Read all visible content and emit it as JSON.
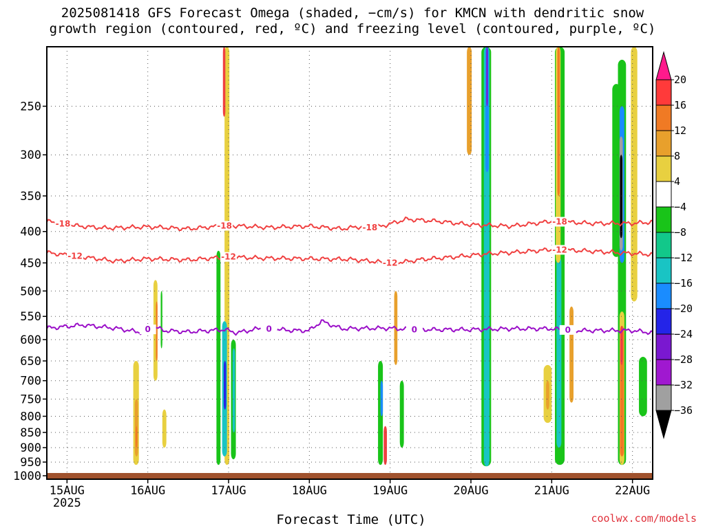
{
  "main": {
    "title_line1": "2025081418 GFS Forecast Omega (shaded, −cm/s) for KMCN with dendritic snow",
    "title_line2": "growth region (contoured, red, ºC) and freezing level (contoured, purple, ºC)",
    "credit": "coolwx.com/models"
  },
  "chart_data": {
    "type": "heatmap",
    "title": "2025081418 GFS Forecast Omega (shaded, −cm/s) for KMCN with dendritic snow growth region (contoured, red, ºC) and freezing level (contoured, purple, ºC)",
    "xlabel": "Forecast Time (UTC)",
    "ylabel": "",
    "y_scale": "log-pressure (inverted)",
    "y_ticks": [
      250,
      300,
      350,
      400,
      450,
      500,
      550,
      600,
      650,
      700,
      750,
      800,
      850,
      900,
      950,
      1000
    ],
    "y_range": [
      200,
      1013
    ],
    "x_ticks": [
      {
        "label": "15AUG",
        "sublabel": "2025",
        "day": 0
      },
      {
        "label": "16AUG",
        "sublabel": "",
        "day": 1
      },
      {
        "label": "17AUG",
        "sublabel": "",
        "day": 2
      },
      {
        "label": "18AUG",
        "sublabel": "",
        "day": 3
      },
      {
        "label": "19AUG",
        "sublabel": "",
        "day": 4
      },
      {
        "label": "20AUG",
        "sublabel": "",
        "day": 5
      },
      {
        "label": "21AUG",
        "sublabel": "",
        "day": 6
      },
      {
        "label": "22AUG",
        "sublabel": "",
        "day": 7
      }
    ],
    "x_range_days": [
      -0.25,
      7.25
    ],
    "grid": true,
    "colorbar": {
      "labels": [
        "20",
        "16",
        "12",
        "8",
        "4",
        "−4",
        "−8",
        "−12",
        "−16",
        "−20",
        "−24",
        "−28",
        "−32",
        "−36"
      ],
      "colors_top_to_bottom": [
        "#ff1a8c",
        "#ff3a3a",
        "#f07a24",
        "#e8a02c",
        "#e8d040",
        "#ffffff",
        "#19c419",
        "#12c88a",
        "#19c4c4",
        "#1a8cff",
        "#2424e8",
        "#7a18d0",
        "#a018d0",
        "#a0a0a0",
        "#000000"
      ]
    },
    "ground_color": "#a0522d",
    "contours": [
      {
        "name": "-18",
        "color": "#f04040",
        "label": "-18",
        "x": [
          -0.25,
          0.15,
          0.5,
          1.0,
          1.5,
          2.0,
          2.5,
          3.0,
          3.4,
          3.6,
          3.75,
          3.9,
          4.2,
          4.6,
          5.0,
          5.5,
          6.0,
          6.5,
          7.0,
          7.25
        ],
        "p": [
          385,
          392,
          395,
          393,
          396,
          391,
          394,
          392,
          396,
          393,
          394,
          392,
          382,
          385,
          390,
          392,
          385,
          388,
          388,
          386
        ],
        "label_x": [
          -0.05,
          1.95,
          3.75,
          6.1
        ]
      },
      {
        "name": "-12",
        "color": "#f04040",
        "label": "-12",
        "x": [
          -0.25,
          0.2,
          0.6,
          1.0,
          1.5,
          2.0,
          2.4,
          3.0,
          3.5,
          4.0,
          4.2,
          4.4,
          4.8,
          5.2,
          5.6,
          6.0,
          6.4,
          6.8,
          7.25
        ],
        "p": [
          433,
          440,
          447,
          443,
          445,
          440,
          442,
          443,
          444,
          450,
          448,
          444,
          440,
          435,
          432,
          428,
          430,
          433,
          436
        ],
        "label_x": [
          0.1,
          2.0,
          4.0,
          6.1
        ]
      },
      {
        "name": "0",
        "color": "#9a0ec8",
        "label": "0",
        "x": [
          -0.25,
          0.2,
          0.6,
          0.95,
          1.05,
          1.2,
          1.5,
          1.95,
          2.1,
          2.4,
          2.8,
          3.0,
          3.15,
          3.4,
          3.8,
          4.0,
          4.3,
          4.6,
          5.0,
          5.5,
          6.0,
          6.3,
          6.7,
          7.0,
          7.25
        ],
        "p": [
          575,
          568,
          575,
          585,
          570,
          580,
          583,
          578,
          585,
          575,
          580,
          580,
          560,
          576,
          575,
          575,
          578,
          578,
          578,
          576,
          576,
          580,
          580,
          580,
          585
        ],
        "label_x": [
          1.0,
          2.5,
          4.3,
          6.2
        ]
      }
    ],
    "omega_bands": [
      {
        "x": 0.82,
        "w": 0.07,
        "p_top": 650,
        "p_bot": 960,
        "color": "#e8d040"
      },
      {
        "x": 0.84,
        "w": 0.04,
        "p_top": 750,
        "p_bot": 930,
        "color": "#e8a02c"
      },
      {
        "x": 0.85,
        "w": 0.02,
        "p_top": 830,
        "p_bot": 900,
        "color": "#f07a24"
      },
      {
        "x": 1.07,
        "w": 0.05,
        "p_top": 480,
        "p_bot": 700,
        "color": "#e8d040"
      },
      {
        "x": 1.1,
        "w": 0.02,
        "p_top": 520,
        "p_bot": 650,
        "color": "#f07a24"
      },
      {
        "x": 1.16,
        "w": 0.02,
        "p_top": 500,
        "p_bot": 620,
        "color": "#19c419"
      },
      {
        "x": 1.18,
        "w": 0.05,
        "p_top": 780,
        "p_bot": 900,
        "color": "#e8d040"
      },
      {
        "x": 1.95,
        "w": 0.06,
        "p_top": 90,
        "p_bot": 960,
        "color": "#e8d040"
      },
      {
        "x": 1.93,
        "w": 0.03,
        "p_top": 130,
        "p_bot": 260,
        "color": "#f04040"
      },
      {
        "x": 1.85,
        "w": 0.05,
        "p_top": 430,
        "p_bot": 960,
        "color": "#19c419"
      },
      {
        "x": 1.92,
        "w": 0.06,
        "p_top": 560,
        "p_bot": 930,
        "color": "#19c4c4"
      },
      {
        "x": 1.94,
        "w": 0.03,
        "p_top": 650,
        "p_bot": 780,
        "color": "#2424e8"
      },
      {
        "x": 2.03,
        "w": 0.06,
        "p_top": 600,
        "p_bot": 940,
        "color": "#19c419"
      },
      {
        "x": 2.05,
        "w": 0.03,
        "p_top": 620,
        "p_bot": 850,
        "color": "#19c4c4"
      },
      {
        "x": 3.85,
        "w": 0.06,
        "p_top": 650,
        "p_bot": 960,
        "color": "#19c419"
      },
      {
        "x": 3.88,
        "w": 0.03,
        "p_top": 700,
        "p_bot": 800,
        "color": "#1a8cff"
      },
      {
        "x": 3.92,
        "w": 0.04,
        "p_top": 830,
        "p_bot": 960,
        "color": "#f04040"
      },
      {
        "x": 4.05,
        "w": 0.04,
        "p_top": 500,
        "p_bot": 660,
        "color": "#e8a02c"
      },
      {
        "x": 4.12,
        "w": 0.05,
        "p_top": 700,
        "p_bot": 900,
        "color": "#19c419"
      },
      {
        "x": 4.95,
        "w": 0.06,
        "p_top": 120,
        "p_bot": 300,
        "color": "#e8a02c"
      },
      {
        "x": 5.13,
        "w": 0.12,
        "p_top": 70,
        "p_bot": 965,
        "color": "#19c419"
      },
      {
        "x": 5.16,
        "w": 0.07,
        "p_top": 70,
        "p_bot": 965,
        "color": "#19c4c4"
      },
      {
        "x": 5.18,
        "w": 0.04,
        "p_top": 70,
        "p_bot": 320,
        "color": "#1a8cff"
      },
      {
        "x": 5.19,
        "w": 0.02,
        "p_top": 80,
        "p_bot": 250,
        "color": "#7a18d0"
      },
      {
        "x": 5.9,
        "w": 0.1,
        "p_top": 660,
        "p_bot": 820,
        "color": "#e8d040"
      },
      {
        "x": 5.93,
        "w": 0.04,
        "p_top": 700,
        "p_bot": 780,
        "color": "#e8a02c"
      },
      {
        "x": 6.04,
        "w": 0.12,
        "p_top": 200,
        "p_bot": 960,
        "color": "#19c419"
      },
      {
        "x": 6.06,
        "w": 0.06,
        "p_top": 440,
        "p_bot": 900,
        "color": "#19c4c4"
      },
      {
        "x": 6.05,
        "w": 0.06,
        "p_top": 120,
        "p_bot": 450,
        "color": "#e8d040"
      },
      {
        "x": 6.07,
        "w": 0.03,
        "p_top": 180,
        "p_bot": 350,
        "color": "#f07a24"
      },
      {
        "x": 6.22,
        "w": 0.05,
        "p_top": 530,
        "p_bot": 760,
        "color": "#e8a02c"
      },
      {
        "x": 6.75,
        "w": 0.1,
        "p_top": 230,
        "p_bot": 440,
        "color": "#19c419"
      },
      {
        "x": 6.82,
        "w": 0.1,
        "p_top": 210,
        "p_bot": 960,
        "color": "#19c419"
      },
      {
        "x": 6.84,
        "w": 0.06,
        "p_top": 250,
        "p_bot": 450,
        "color": "#1a8cff"
      },
      {
        "x": 6.84,
        "w": 0.04,
        "p_top": 280,
        "p_bot": 430,
        "color": "#a0a0a0"
      },
      {
        "x": 6.845,
        "w": 0.03,
        "p_top": 300,
        "p_bot": 410,
        "color": "#000000"
      },
      {
        "x": 6.84,
        "w": 0.06,
        "p_top": 540,
        "p_bot": 960,
        "color": "#e8d040"
      },
      {
        "x": 6.845,
        "w": 0.05,
        "p_top": 570,
        "p_bot": 930,
        "color": "#f07a24"
      },
      {
        "x": 6.85,
        "w": 0.03,
        "p_top": 570,
        "p_bot": 660,
        "color": "#f04040"
      },
      {
        "x": 6.98,
        "w": 0.08,
        "p_top": 120,
        "p_bot": 520,
        "color": "#e8d040"
      },
      {
        "x": 7.08,
        "w": 0.1,
        "p_top": 640,
        "p_bot": 800,
        "color": "#19c419"
      }
    ]
  }
}
